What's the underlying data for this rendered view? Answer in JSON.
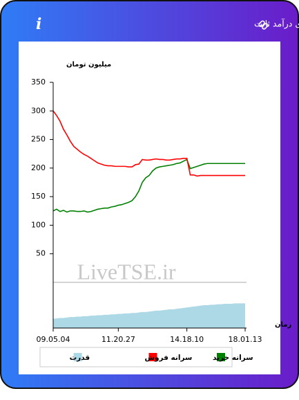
{
  "header": {
    "title": "سرانه ی خرید و فروش حقیقی در صندوق های درآمد ثابت"
  },
  "chart_data": {
    "type": "line",
    "y_label": "میلیون تومان",
    "x_label": "زمان",
    "watermark": "LiveTSE.ir",
    "categories": [
      "09.05.04",
      null,
      null,
      null,
      null,
      null,
      null,
      null,
      null,
      null,
      null,
      null,
      null,
      null,
      null,
      null,
      null,
      null,
      null,
      "11.20.27",
      null,
      null,
      null,
      null,
      null,
      null,
      null,
      null,
      null,
      null,
      null,
      null,
      null,
      null,
      null,
      null,
      null,
      null,
      null,
      "14.18.10",
      null,
      null,
      null,
      null,
      null,
      null,
      null,
      null,
      null,
      null,
      null,
      null,
      null,
      null,
      null,
      null,
      "18.01.13"
    ],
    "ylim": [
      0,
      350
    ],
    "yticks": [
      50,
      100,
      150,
      200,
      250,
      300,
      350
    ],
    "y2lim": [
      0,
      100
    ],
    "series": [
      {
        "name": "سرانه خرید",
        "color": "#008000",
        "values": [
          125,
          128,
          124,
          126,
          123,
          125,
          125,
          124,
          124,
          125,
          123,
          124,
          126,
          128,
          129,
          130,
          130,
          132,
          133,
          135,
          136,
          138,
          140,
          143,
          150,
          160,
          175,
          183,
          187,
          195,
          200,
          202,
          203,
          204,
          205,
          206,
          208,
          209,
          212,
          215,
          199,
          201,
          203,
          205,
          207,
          208,
          208,
          208,
          208,
          208,
          208,
          208,
          208,
          208,
          208,
          208,
          208
        ]
      },
      {
        "name": "سرانه فروش",
        "color": "#ff0000",
        "values": [
          300,
          292,
          282,
          268,
          258,
          247,
          238,
          233,
          228,
          224,
          221,
          217,
          213,
          209,
          207,
          205,
          204,
          204,
          203,
          203,
          203,
          203,
          202,
          202,
          206,
          207,
          215,
          214,
          214,
          215,
          216,
          215,
          215,
          214,
          214,
          215,
          216,
          216,
          217,
          217,
          188,
          188,
          186,
          187,
          187,
          187,
          187,
          187,
          187,
          187,
          187,
          187,
          187,
          187,
          187,
          187,
          187
        ]
      },
      {
        "name": "قدرت",
        "color": "#add8e6",
        "axis": "y2",
        "values": [
          20,
          21,
          22,
          22,
          23,
          24,
          24,
          25,
          25,
          26,
          26,
          27,
          27,
          28,
          28,
          29,
          29,
          30,
          30,
          31,
          31,
          32,
          32,
          33,
          33,
          34,
          35,
          35,
          36,
          37,
          38,
          38,
          39,
          40,
          41,
          41,
          42,
          43,
          44,
          45,
          46,
          47,
          48,
          49,
          50,
          50,
          51,
          51,
          52,
          52,
          53,
          53,
          53,
          54,
          54,
          54,
          54
        ]
      }
    ]
  }
}
